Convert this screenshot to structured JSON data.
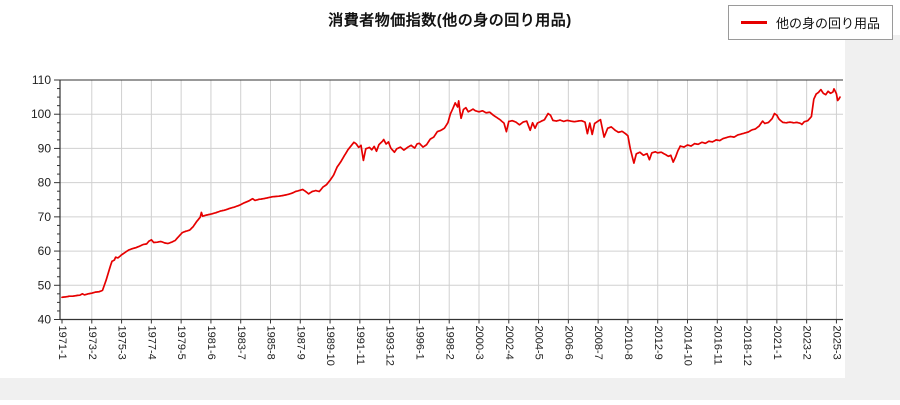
{
  "page": {
    "background": "#ffffff",
    "side_panel_color": "#f0f0f0"
  },
  "title": "消費者物価指数(他の身の回り用品)",
  "legend": {
    "label": "他の身の回り用品",
    "line_color": "#e60000",
    "position": "top-right"
  },
  "colors": {
    "series": "#e60000",
    "grid": "#d0d0d0",
    "axis": "#333333",
    "tick_text": "#222222",
    "plot_background": "#ffffff"
  },
  "chart_data": {
    "type": "line",
    "title": "消費者物価指数(他の身の回り用品)",
    "xlabel": "",
    "ylabel": "",
    "ylim": [
      40,
      110
    ],
    "y_ticks": [
      40,
      50,
      60,
      70,
      80,
      90,
      100,
      110
    ],
    "y_minor_step": 2.5,
    "grid": true,
    "legend_position": "top-right",
    "x_range": [
      "1971-01",
      "2025-06"
    ],
    "x_tick_labels": [
      "1971-1",
      "1973-2",
      "1975-3",
      "1977-4",
      "1979-5",
      "1981-6",
      "1983-7",
      "1985-8",
      "1987-9",
      "1989-10",
      "1991-11",
      "1993-12",
      "1996-1",
      "1998-2",
      "2000-3",
      "2002-4",
      "2004-5",
      "2006-6",
      "2008-7",
      "2010-8",
      "2012-9",
      "2014-10",
      "2016-11",
      "2018-12",
      "2021-1",
      "2023-2",
      "2025-3"
    ],
    "series": [
      {
        "name": "他の身の回り用品",
        "color": "#e60000",
        "points": [
          [
            "1971-01",
            46.5
          ],
          [
            "1971-04",
            46.6
          ],
          [
            "1971-07",
            46.8
          ],
          [
            "1971-10",
            46.8
          ],
          [
            "1972-01",
            47.0
          ],
          [
            "1972-04",
            47.1
          ],
          [
            "1972-06",
            47.5
          ],
          [
            "1972-08",
            47.2
          ],
          [
            "1972-11",
            47.5
          ],
          [
            "1973-02",
            47.7
          ],
          [
            "1973-05",
            48.0
          ],
          [
            "1973-08",
            48.1
          ],
          [
            "1973-11",
            48.5
          ],
          [
            "1974-02",
            51.5
          ],
          [
            "1974-05",
            55.0
          ],
          [
            "1974-07",
            57.0
          ],
          [
            "1974-09",
            57.4
          ],
          [
            "1974-10",
            58.2
          ],
          [
            "1974-12",
            58.0
          ],
          [
            "1975-03",
            58.9
          ],
          [
            "1975-06",
            59.6
          ],
          [
            "1975-09",
            60.3
          ],
          [
            "1975-12",
            60.7
          ],
          [
            "1976-03",
            61.0
          ],
          [
            "1976-06",
            61.4
          ],
          [
            "1976-09",
            61.9
          ],
          [
            "1976-12",
            62.1
          ],
          [
            "1977-02",
            62.9
          ],
          [
            "1977-04",
            63.3
          ],
          [
            "1977-06",
            62.5
          ],
          [
            "1977-09",
            62.6
          ],
          [
            "1977-12",
            62.8
          ],
          [
            "1978-03",
            62.4
          ],
          [
            "1978-06",
            62.2
          ],
          [
            "1978-09",
            62.6
          ],
          [
            "1978-12",
            63.1
          ],
          [
            "1979-03",
            64.3
          ],
          [
            "1979-06",
            65.4
          ],
          [
            "1979-09",
            65.8
          ],
          [
            "1979-12",
            66.1
          ],
          [
            "1980-03",
            67.1
          ],
          [
            "1980-06",
            68.6
          ],
          [
            "1980-09",
            69.9
          ],
          [
            "1980-10",
            71.3
          ],
          [
            "1980-11",
            70.2
          ],
          [
            "1981-02",
            70.5
          ],
          [
            "1981-06",
            70.8
          ],
          [
            "1981-10",
            71.2
          ],
          [
            "1982-02",
            71.7
          ],
          [
            "1982-06",
            72.0
          ],
          [
            "1982-10",
            72.5
          ],
          [
            "1983-02",
            72.9
          ],
          [
            "1983-06",
            73.4
          ],
          [
            "1983-10",
            74.1
          ],
          [
            "1984-02",
            74.7
          ],
          [
            "1984-05",
            75.3
          ],
          [
            "1984-07",
            74.8
          ],
          [
            "1984-10",
            75.1
          ],
          [
            "1985-02",
            75.3
          ],
          [
            "1985-06",
            75.6
          ],
          [
            "1985-10",
            75.9
          ],
          [
            "1986-02",
            76.0
          ],
          [
            "1986-06",
            76.2
          ],
          [
            "1986-10",
            76.5
          ],
          [
            "1987-02",
            76.9
          ],
          [
            "1987-05",
            77.4
          ],
          [
            "1987-08",
            77.7
          ],
          [
            "1987-11",
            78.0
          ],
          [
            "1988-02",
            77.3
          ],
          [
            "1988-04",
            76.7
          ],
          [
            "1988-07",
            77.4
          ],
          [
            "1988-10",
            77.7
          ],
          [
            "1989-01",
            77.4
          ],
          [
            "1989-04",
            78.7
          ],
          [
            "1989-07",
            79.4
          ],
          [
            "1989-10",
            80.7
          ],
          [
            "1990-01",
            82.2
          ],
          [
            "1990-04",
            84.6
          ],
          [
            "1990-07",
            86.1
          ],
          [
            "1990-10",
            87.9
          ],
          [
            "1991-01",
            89.6
          ],
          [
            "1991-04",
            90.9
          ],
          [
            "1991-06",
            91.8
          ],
          [
            "1991-08",
            91.3
          ],
          [
            "1991-10",
            90.3
          ],
          [
            "1991-12",
            90.9
          ],
          [
            "1992-02",
            86.5
          ],
          [
            "1992-04",
            89.9
          ],
          [
            "1992-07",
            90.3
          ],
          [
            "1992-09",
            89.6
          ],
          [
            "1992-11",
            90.6
          ],
          [
            "1993-01",
            89.2
          ],
          [
            "1993-03",
            91.1
          ],
          [
            "1993-06",
            92.1
          ],
          [
            "1993-07",
            92.6
          ],
          [
            "1993-09",
            91.3
          ],
          [
            "1993-11",
            91.9
          ],
          [
            "1994-01",
            90.1
          ],
          [
            "1994-04",
            88.9
          ],
          [
            "1994-06",
            89.9
          ],
          [
            "1994-09",
            90.4
          ],
          [
            "1994-12",
            89.5
          ],
          [
            "1995-03",
            90.3
          ],
          [
            "1995-06",
            90.9
          ],
          [
            "1995-09",
            90.1
          ],
          [
            "1995-11",
            91.3
          ],
          [
            "1996-01",
            91.5
          ],
          [
            "1996-04",
            90.4
          ],
          [
            "1996-07",
            91.1
          ],
          [
            "1996-10",
            92.7
          ],
          [
            "1997-01",
            93.3
          ],
          [
            "1997-04",
            94.9
          ],
          [
            "1997-07",
            95.3
          ],
          [
            "1997-10",
            95.9
          ],
          [
            "1998-01",
            97.6
          ],
          [
            "1998-03",
            100.1
          ],
          [
            "1998-05",
            101.6
          ],
          [
            "1998-07",
            103.3
          ],
          [
            "1998-09",
            102.1
          ],
          [
            "1998-10",
            103.9
          ],
          [
            "1998-11",
            100.9
          ],
          [
            "1998-12",
            98.8
          ],
          [
            "1999-02",
            101.4
          ],
          [
            "1999-04",
            101.9
          ],
          [
            "1999-06",
            100.7
          ],
          [
            "1999-08",
            101.1
          ],
          [
            "1999-10",
            101.5
          ],
          [
            "1999-12",
            101.0
          ],
          [
            "2000-03",
            100.7
          ],
          [
            "2000-06",
            101.0
          ],
          [
            "2000-09",
            100.4
          ],
          [
            "2000-12",
            100.6
          ],
          [
            "2001-03",
            99.7
          ],
          [
            "2001-06",
            99.0
          ],
          [
            "2001-09",
            98.3
          ],
          [
            "2001-12",
            97.4
          ],
          [
            "2002-02",
            94.9
          ],
          [
            "2002-04",
            97.9
          ],
          [
            "2002-07",
            98.1
          ],
          [
            "2002-10",
            97.7
          ],
          [
            "2003-01",
            96.9
          ],
          [
            "2003-04",
            97.7
          ],
          [
            "2003-07",
            98.0
          ],
          [
            "2003-10",
            95.3
          ],
          [
            "2003-12",
            97.5
          ],
          [
            "2004-02",
            95.9
          ],
          [
            "2004-04",
            97.4
          ],
          [
            "2004-07",
            97.9
          ],
          [
            "2004-10",
            98.4
          ],
          [
            "2005-01",
            100.2
          ],
          [
            "2005-03",
            99.7
          ],
          [
            "2005-05",
            98.2
          ],
          [
            "2005-08",
            98.0
          ],
          [
            "2005-11",
            98.3
          ],
          [
            "2006-02",
            97.9
          ],
          [
            "2006-05",
            98.2
          ],
          [
            "2006-08",
            98.0
          ],
          [
            "2006-11",
            97.8
          ],
          [
            "2007-02",
            98.0
          ],
          [
            "2007-05",
            98.1
          ],
          [
            "2007-08",
            97.7
          ],
          [
            "2007-10",
            94.3
          ],
          [
            "2007-12",
            97.4
          ],
          [
            "2008-02",
            94.1
          ],
          [
            "2008-04",
            97.3
          ],
          [
            "2008-07",
            98.0
          ],
          [
            "2008-09",
            98.4
          ],
          [
            "2008-12",
            93.3
          ],
          [
            "2009-03",
            95.9
          ],
          [
            "2009-06",
            96.3
          ],
          [
            "2009-09",
            95.4
          ],
          [
            "2009-12",
            94.7
          ],
          [
            "2010-03",
            95.0
          ],
          [
            "2010-06",
            94.3
          ],
          [
            "2010-08",
            93.7
          ],
          [
            "2010-10",
            89.9
          ],
          [
            "2011-01",
            85.7
          ],
          [
            "2011-03",
            88.4
          ],
          [
            "2011-06",
            88.9
          ],
          [
            "2011-09",
            88.0
          ],
          [
            "2011-12",
            88.5
          ],
          [
            "2012-02",
            86.7
          ],
          [
            "2012-04",
            88.7
          ],
          [
            "2012-07",
            89.0
          ],
          [
            "2012-09",
            88.7
          ],
          [
            "2012-12",
            88.9
          ],
          [
            "2013-02",
            88.5
          ],
          [
            "2013-04",
            88.1
          ],
          [
            "2013-06",
            87.7
          ],
          [
            "2013-08",
            88.0
          ],
          [
            "2013-10",
            86.0
          ],
          [
            "2013-12",
            87.5
          ],
          [
            "2014-02",
            89.4
          ],
          [
            "2014-04",
            90.7
          ],
          [
            "2014-07",
            90.4
          ],
          [
            "2014-10",
            91.0
          ],
          [
            "2015-01",
            90.7
          ],
          [
            "2015-04",
            91.4
          ],
          [
            "2015-07",
            91.2
          ],
          [
            "2015-10",
            91.8
          ],
          [
            "2016-01",
            91.5
          ],
          [
            "2016-04",
            92.1
          ],
          [
            "2016-07",
            91.9
          ],
          [
            "2016-10",
            92.5
          ],
          [
            "2017-01",
            92.3
          ],
          [
            "2017-04",
            92.9
          ],
          [
            "2017-07",
            93.2
          ],
          [
            "2017-10",
            93.5
          ],
          [
            "2018-01",
            93.3
          ],
          [
            "2018-04",
            93.9
          ],
          [
            "2018-07",
            94.2
          ],
          [
            "2018-10",
            94.5
          ],
          [
            "2019-01",
            94.8
          ],
          [
            "2019-04",
            95.4
          ],
          [
            "2019-07",
            95.7
          ],
          [
            "2019-10",
            96.5
          ],
          [
            "2020-01",
            98.0
          ],
          [
            "2020-03",
            97.3
          ],
          [
            "2020-06",
            97.6
          ],
          [
            "2020-09",
            98.7
          ],
          [
            "2020-11",
            100.2
          ],
          [
            "2021-01",
            99.7
          ],
          [
            "2021-03",
            98.5
          ],
          [
            "2021-06",
            97.6
          ],
          [
            "2021-09",
            97.5
          ],
          [
            "2021-12",
            97.7
          ],
          [
            "2022-03",
            97.5
          ],
          [
            "2022-06",
            97.6
          ],
          [
            "2022-09",
            97.3
          ],
          [
            "2022-10",
            97.0
          ],
          [
            "2022-12",
            97.8
          ],
          [
            "2023-03",
            98.1
          ],
          [
            "2023-06",
            99.3
          ],
          [
            "2023-08",
            104.4
          ],
          [
            "2023-10",
            105.9
          ],
          [
            "2023-12",
            106.4
          ],
          [
            "2024-02",
            107.2
          ],
          [
            "2024-04",
            106.1
          ],
          [
            "2024-06",
            105.7
          ],
          [
            "2024-08",
            106.7
          ],
          [
            "2024-10",
            106.1
          ],
          [
            "2024-12",
            106.5
          ],
          [
            "2025-01",
            107.4
          ],
          [
            "2025-03",
            106.0
          ],
          [
            "2025-04",
            104.0
          ],
          [
            "2025-05",
            104.4
          ],
          [
            "2025-06",
            105.0
          ]
        ]
      }
    ]
  }
}
